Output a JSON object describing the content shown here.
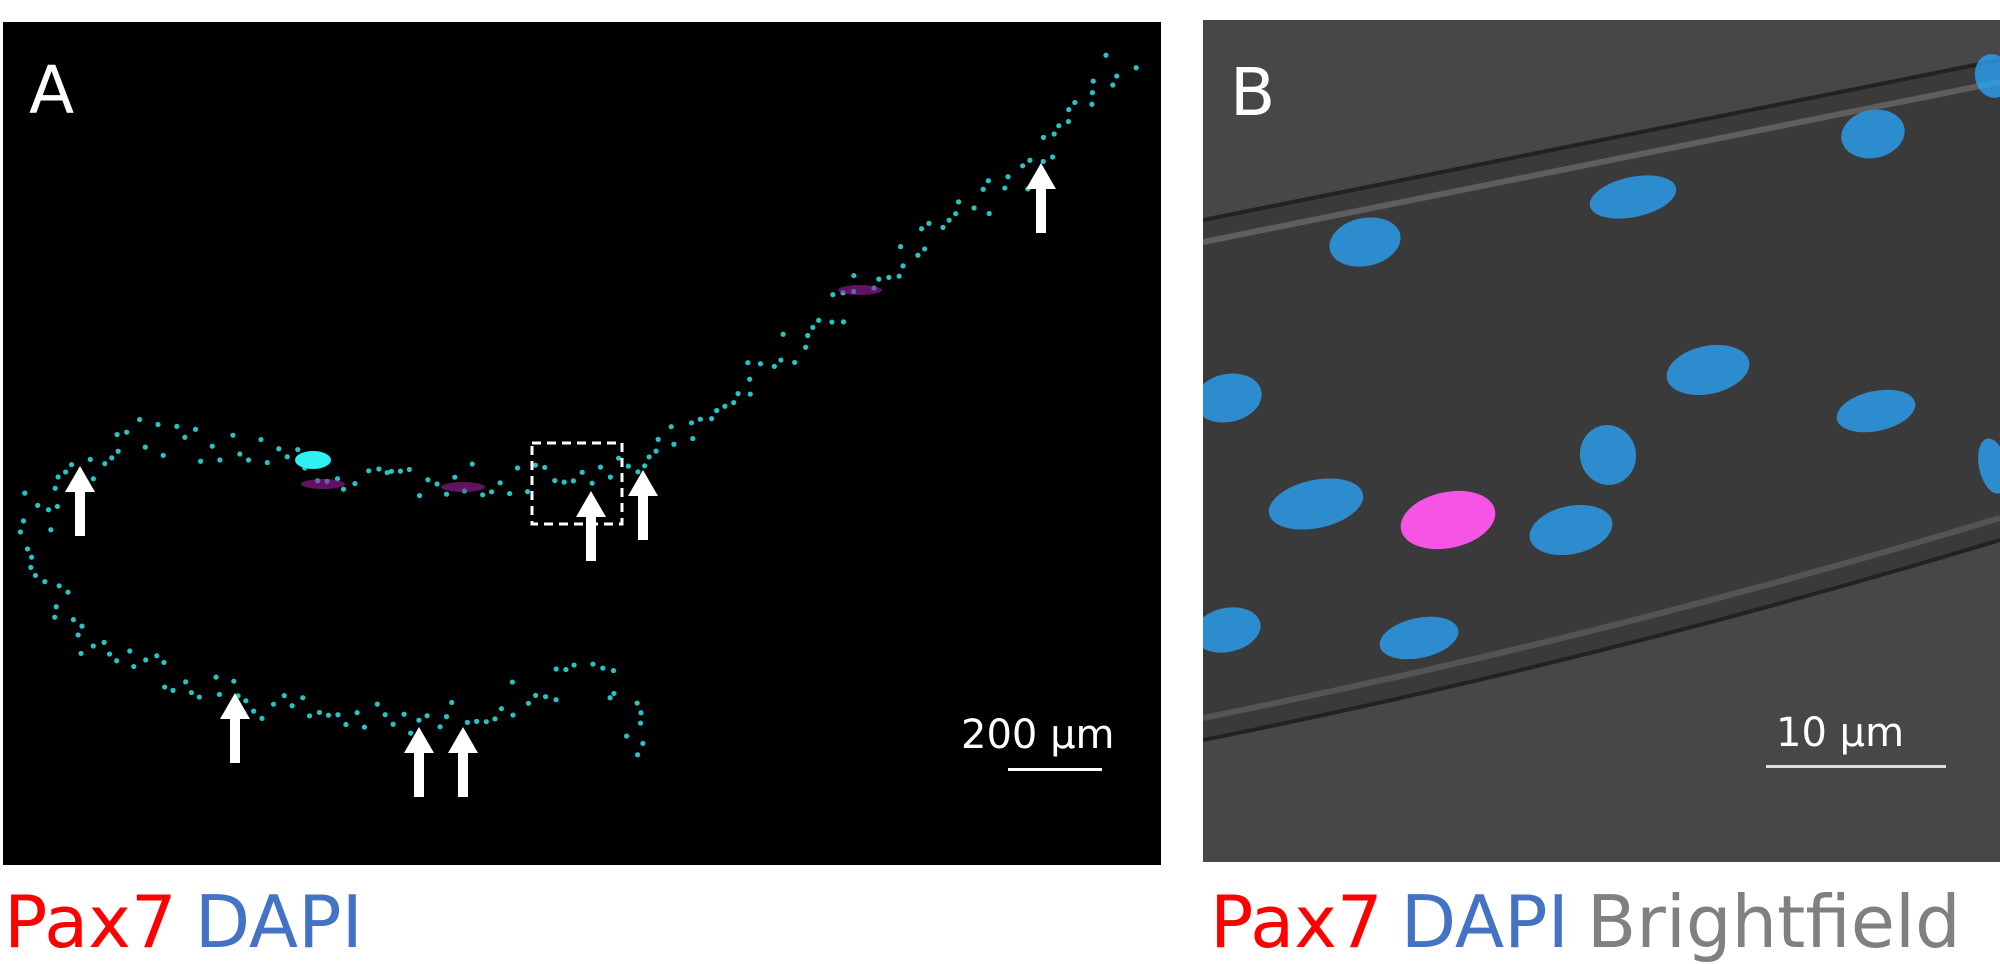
{
  "panel_a": {
    "label": "A",
    "scale_bar": "200 µm",
    "legend": [
      {
        "text": "Pax7",
        "color": "#ff0000"
      },
      {
        "text": "DAPI",
        "color": "#4472c4"
      }
    ]
  },
  "panel_b": {
    "label": "B",
    "scale_bar": "10 µm",
    "legend": [
      {
        "text": "Pax7",
        "color": "#ff0000"
      },
      {
        "text": "DAPI",
        "color": "#4472c4"
      },
      {
        "text": "Brightfield",
        "color": "#808080"
      }
    ]
  },
  "colors": {
    "dapi_nuclei": "#2ee6e6",
    "pax7_nuclei": "#ff55ee",
    "nuclei_b": "#2aa8ff"
  }
}
